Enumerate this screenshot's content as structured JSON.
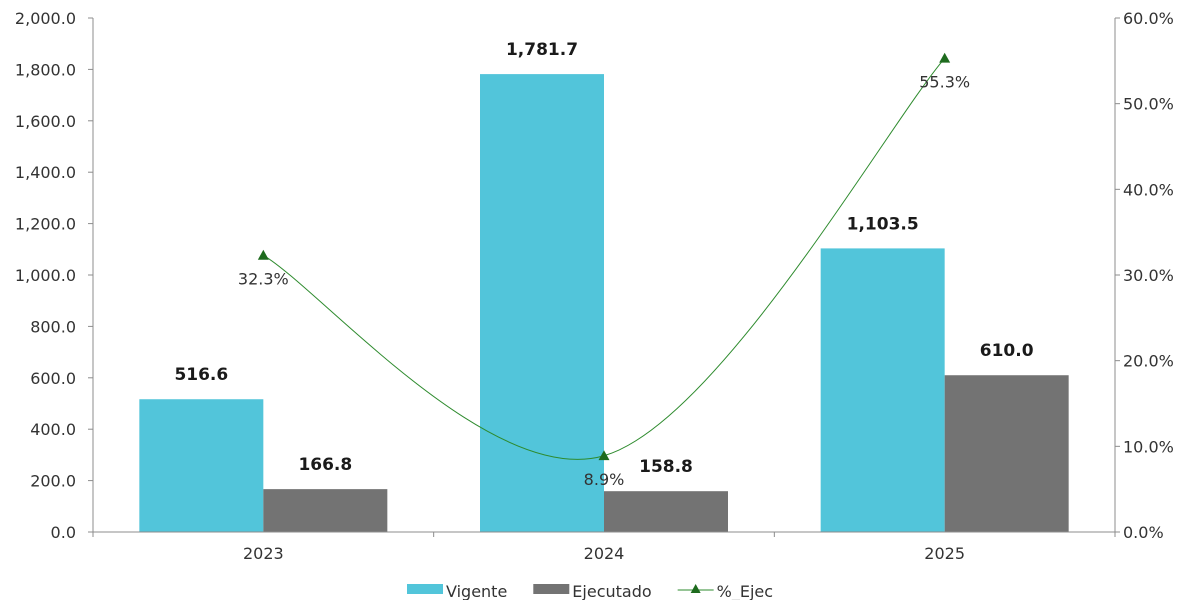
{
  "chart_data": {
    "type": "bar",
    "categories": [
      "2023",
      "2024",
      "2025"
    ],
    "series": [
      {
        "name": "Vigente",
        "type": "bar",
        "axis": "left",
        "color": "#52c5da",
        "values": [
          516.6,
          1781.7,
          1103.5
        ],
        "labels": [
          "516.6",
          "1,781.7",
          "1,103.5"
        ]
      },
      {
        "name": "Ejecutado",
        "type": "bar",
        "axis": "left",
        "color": "#737373",
        "values": [
          166.8,
          158.8,
          610.0
        ],
        "labels": [
          "166.8",
          "158.8",
          "610.0"
        ]
      },
      {
        "name": "%_Ejec",
        "type": "line",
        "axis": "right",
        "color": "#2e8b2e",
        "marker": "triangle",
        "values": [
          32.3,
          8.9,
          55.3
        ],
        "labels": [
          "32.3%",
          "8.9%",
          "55.3%"
        ]
      }
    ],
    "y_left": {
      "ylim": [
        0,
        2000
      ],
      "ticks": [
        "0.0",
        "200.0",
        "400.0",
        "600.0",
        "800.0",
        "1,000.0",
        "1,200.0",
        "1,400.0",
        "1,600.0",
        "1,800.0",
        "2,000.0"
      ]
    },
    "y_right": {
      "ylim": [
        0,
        60
      ],
      "ticks": [
        "0.0%",
        "10.0%",
        "20.0%",
        "30.0%",
        "40.0%",
        "50.0%",
        "60.0%"
      ]
    },
    "legend": "bottom",
    "grid": false
  }
}
